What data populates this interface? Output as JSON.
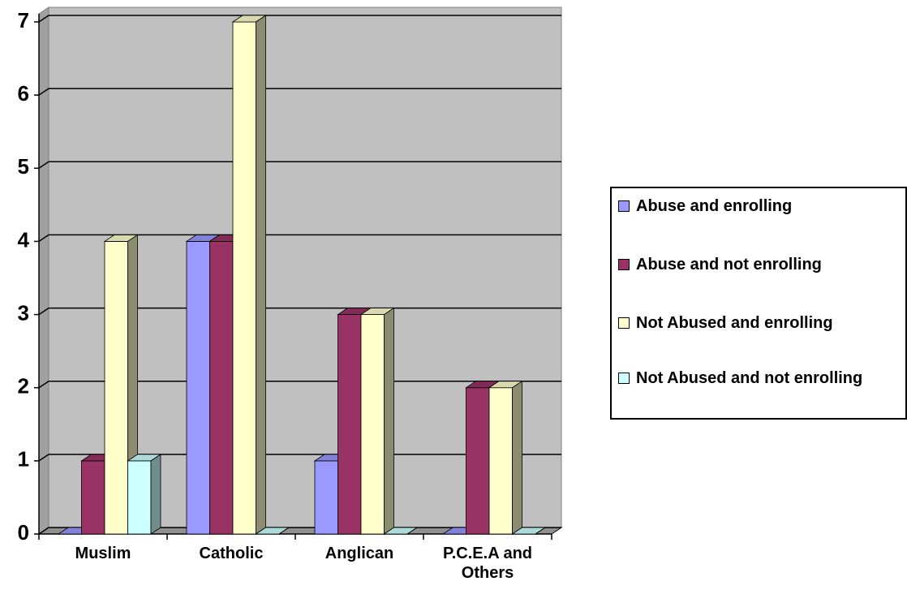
{
  "chart_data": {
    "type": "bar3d",
    "categories": [
      "Muslim",
      "Catholic",
      "Anglican",
      "P.C.E.A and Others"
    ],
    "series": [
      {
        "name": "Abuse and enrolling",
        "color": "#9999ff",
        "values": [
          0,
          4,
          1,
          0
        ]
      },
      {
        "name": "Abuse and not enrolling",
        "color": "#993366",
        "values": [
          1,
          4,
          3,
          2
        ]
      },
      {
        "name": "Not Abused and enrolling",
        "color": "#ffffcc",
        "values": [
          4,
          7,
          3,
          2
        ]
      },
      {
        "name": "Not Abused and not enrolling",
        "color": "#ccffff",
        "values": [
          1,
          0,
          0,
          0
        ]
      }
    ],
    "ylim": [
      0,
      7
    ],
    "yticks": [
      0,
      1,
      2,
      3,
      4,
      5,
      6,
      7
    ],
    "grid": true,
    "legend": "right"
  }
}
